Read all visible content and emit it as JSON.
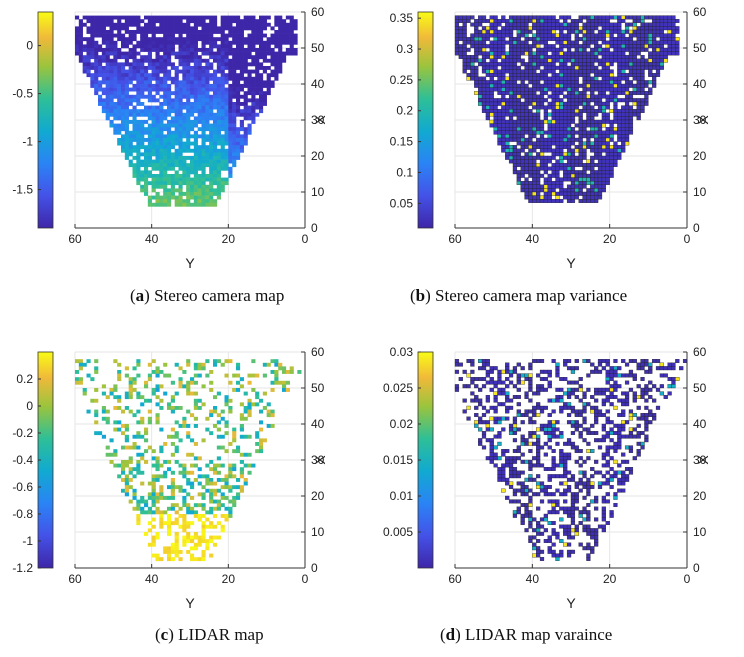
{
  "chart_data": [
    {
      "type": "heatmap",
      "caption_letter": "a",
      "caption_text": "Stereo camera map",
      "xlabel": "Y",
      "ylabel": "X",
      "xlim": [
        60,
        0
      ],
      "ylim": [
        0,
        60
      ],
      "x_ticks": [
        "60",
        "40",
        "20",
        "0"
      ],
      "y_ticks": [
        "0",
        "10",
        "20",
        "30",
        "40",
        "50",
        "60"
      ],
      "colorbar_range": [
        -1.9,
        0.35
      ],
      "colorbar_ticks": [
        "0",
        "-0.5",
        "-1",
        "-1.5"
      ],
      "colorbar_tick_values": [
        0,
        -0.5,
        -1,
        -1.5
      ],
      "colormap": "parula",
      "grid_cell_outlines": false,
      "grid": true
    },
    {
      "type": "heatmap",
      "caption_letter": "b",
      "caption_text": "Stereo camera map variance",
      "xlabel": "Y",
      "ylabel": "X",
      "xlim": [
        60,
        0
      ],
      "ylim": [
        0,
        60
      ],
      "x_ticks": [
        "60",
        "40",
        "20",
        "0"
      ],
      "y_ticks": [
        "0",
        "10",
        "20",
        "30",
        "40",
        "50",
        "60"
      ],
      "colorbar_range": [
        0.01,
        0.36
      ],
      "colorbar_ticks": [
        "0.35",
        "0.3",
        "0.25",
        "0.2",
        "0.15",
        "0.1",
        "0.05"
      ],
      "colorbar_tick_values": [
        0.35,
        0.3,
        0.25,
        0.2,
        0.15,
        0.1,
        0.05
      ],
      "colormap": "parula",
      "grid_cell_outlines": true,
      "grid": true
    },
    {
      "type": "heatmap",
      "caption_letter": "c",
      "caption_text": "LIDAR map",
      "xlabel": "Y",
      "ylabel": "X",
      "xlim": [
        60,
        0
      ],
      "ylim": [
        0,
        60
      ],
      "x_ticks": [
        "60",
        "40",
        "20",
        "0"
      ],
      "y_ticks": [
        "0",
        "10",
        "20",
        "30",
        "40",
        "50",
        "60"
      ],
      "colorbar_range": [
        -1.2,
        0.4
      ],
      "colorbar_ticks": [
        "0.2",
        "0",
        "-0.2",
        "-0.4",
        "-0.6",
        "-0.8",
        "-1",
        "-1.2"
      ],
      "colorbar_tick_values": [
        0.2,
        0,
        -0.2,
        -0.4,
        -0.6,
        -0.8,
        -1,
        -1.2
      ],
      "colormap": "parula",
      "grid_cell_outlines": false,
      "grid": true
    },
    {
      "type": "heatmap",
      "caption_letter": "d",
      "caption_text": "LIDAR map varaince",
      "xlabel": "Y",
      "ylabel": "X",
      "xlim": [
        60,
        0
      ],
      "ylim": [
        0,
        60
      ],
      "x_ticks": [
        "60",
        "40",
        "20",
        "0"
      ],
      "y_ticks": [
        "0",
        "10",
        "20",
        "30",
        "40",
        "50",
        "60"
      ],
      "colorbar_range": [
        0,
        0.03
      ],
      "colorbar_ticks": [
        "0.03",
        "0.025",
        "0.02",
        "0.015",
        "0.01",
        "0.005"
      ],
      "colorbar_tick_values": [
        0.03,
        0.025,
        0.02,
        0.015,
        0.01,
        0.005
      ],
      "colormap": "parula",
      "grid_cell_outlines": true,
      "grid": true
    }
  ]
}
